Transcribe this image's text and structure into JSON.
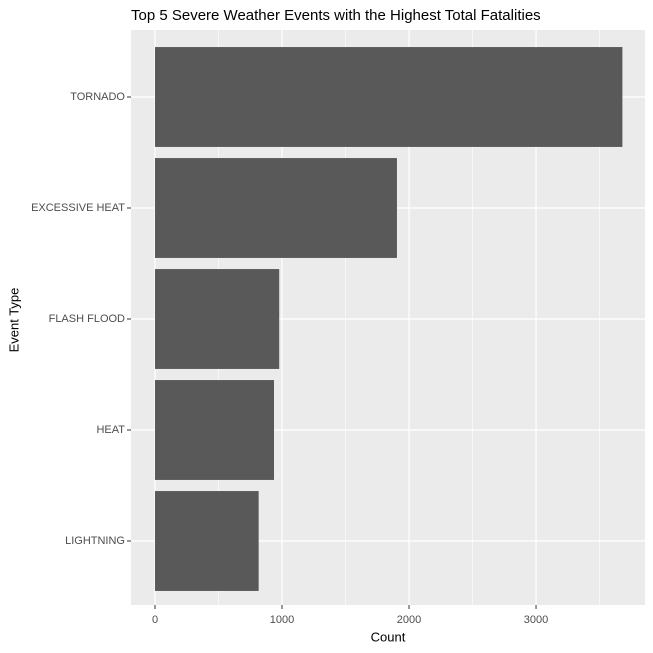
{
  "chart_data": {
    "type": "hbar",
    "title": "Top 5 Severe Weather Events with the Highest Total Fatalities",
    "x_label": "Count",
    "y_label": "Event Type",
    "categories": [
      "TORNADO",
      "EXCESSIVE HEAT",
      "FLASH FLOOD",
      "HEAT",
      "LIGHTNING"
    ],
    "values": [
      3680,
      1905,
      978,
      937,
      816
    ],
    "color": "#595959",
    "xlim": [
      -189,
      3858
    ],
    "xticks": [
      0,
      1000,
      2000,
      3000
    ],
    "grid": true
  }
}
